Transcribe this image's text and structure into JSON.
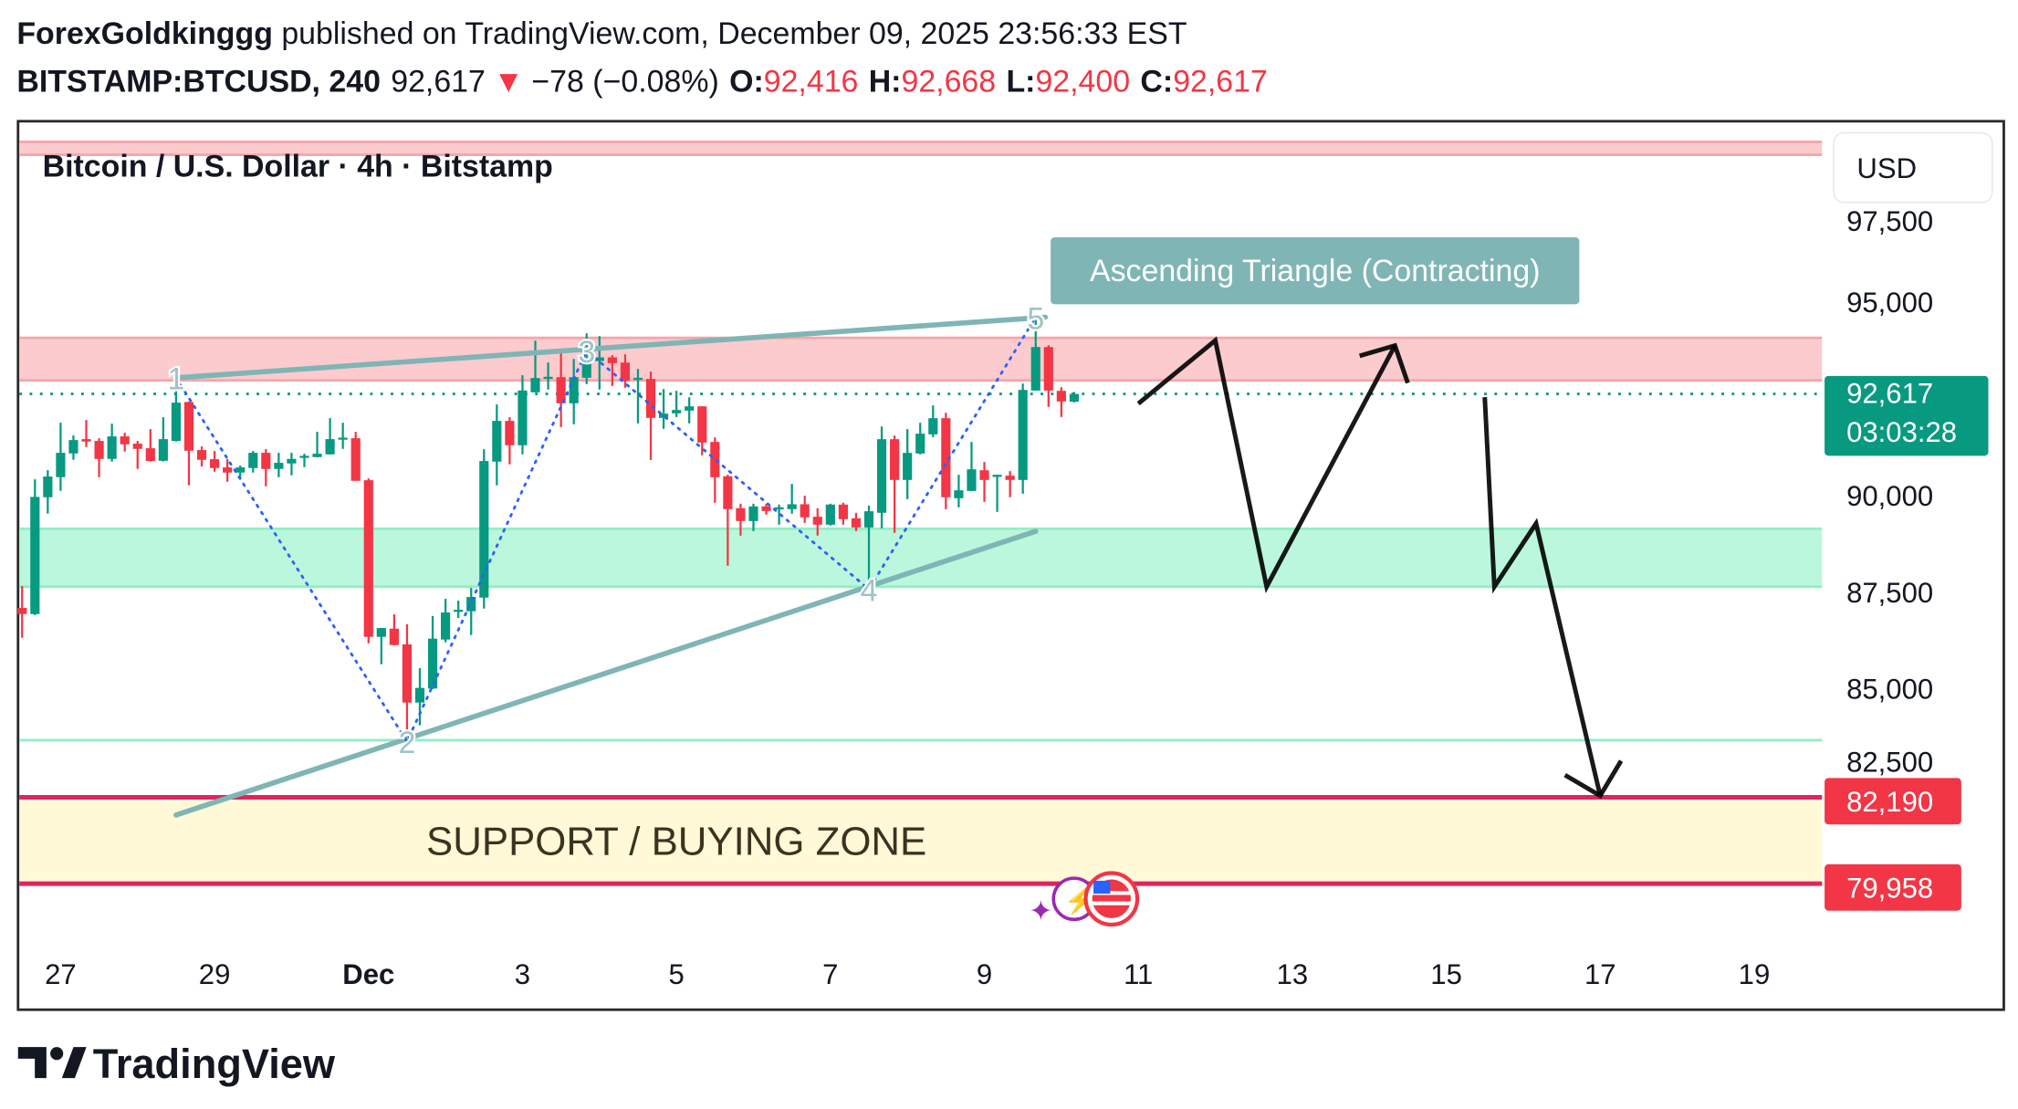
{
  "header": {
    "author": "ForexGoldkinggg",
    "published": " published on TradingView.com, December 09, 2025 23:56:33 EST",
    "symbol": "BITSTAMP:BTCUSD, 240",
    "last": "92,617",
    "change": "−78 (−0.08%)",
    "o_label": "O:",
    "o": "92,416",
    "h_label": "H:",
    "h": "92,668",
    "l_label": "L:",
    "l": "92,400",
    "c_label": "C:",
    "c": "92,617"
  },
  "legend_title": "Bitcoin / U.S. Dollar · 4h · Bitstamp",
  "currency_button": "USD",
  "footer_logo": "TradingView",
  "colors": {
    "up": "#089981",
    "down": "#f23645",
    "triangle": "#7fb5b5",
    "wave": "#2962ff",
    "resistance_fill": "#fccbcd",
    "resistance_edge": "#f7a5a9",
    "demand_fill": "#bbf7dc",
    "demand_edge": "#91efc4",
    "support_fill": "#fff9d8",
    "support_edge": "#e0245e"
  },
  "chart_data": {
    "type": "candlestick",
    "title": "Bitcoin / U.S. Dollar · 4h · Bitstamp",
    "interval_minutes": 240,
    "first_candle": "2025-11-26 12:00",
    "candles_ohlc": [
      [
        87085,
        87651,
        86315,
        86928
      ],
      [
        86928,
        90411,
        86900,
        89955
      ],
      [
        89947,
        90647,
        89523,
        90482
      ],
      [
        90466,
        91873,
        90112,
        91095
      ],
      [
        91079,
        91543,
        90914,
        91425
      ],
      [
        91449,
        91944,
        91244,
        91386
      ],
      [
        91402,
        91472,
        90466,
        90938
      ],
      [
        90938,
        91850,
        90867,
        91520
      ],
      [
        91520,
        91614,
        91126,
        91315
      ],
      [
        91331,
        91402,
        90678,
        91197
      ],
      [
        91213,
        91708,
        90867,
        90883
      ],
      [
        90890,
        92015,
        90870,
        91449
      ],
      [
        91402,
        93100,
        91386,
        92392
      ],
      [
        92408,
        92420,
        90254,
        91150
      ],
      [
        91166,
        91260,
        90741,
        90914
      ],
      [
        90930,
        91142,
        90608,
        90702
      ],
      [
        90718,
        90930,
        90348,
        90584
      ],
      [
        90584,
        90765,
        90411,
        90718
      ],
      [
        90702,
        91142,
        90584,
        91095
      ],
      [
        91095,
        91189,
        90230,
        90678
      ],
      [
        90678,
        91095,
        90466,
        90836
      ],
      [
        90820,
        91095,
        90513,
        90938
      ],
      [
        90970,
        91071,
        90726,
        91017
      ],
      [
        90985,
        91637,
        90980,
        91071
      ],
      [
        91056,
        91991,
        91050,
        91449
      ],
      [
        91441,
        91873,
        91197,
        91488
      ],
      [
        91472,
        91637,
        90372,
        90372
      ],
      [
        90387,
        90435,
        86173,
        86338
      ],
      [
        86338,
        86570,
        85631,
        86566
      ],
      [
        86550,
        86920,
        86120,
        86126
      ],
      [
        86142,
        86661,
        83815,
        84640
      ],
      [
        84640,
        85529,
        84051,
        85018
      ],
      [
        85002,
        86873,
        84990,
        86291
      ],
      [
        86268,
        87321,
        86197,
        86968
      ],
      [
        86991,
        87274,
        86826,
        87038
      ],
      [
        86999,
        87604,
        86385,
        87368
      ],
      [
        87353,
        91189,
        87070,
        90883
      ],
      [
        90867,
        92345,
        90254,
        91920
      ],
      [
        91920,
        92015,
        90796,
        91291
      ],
      [
        91291,
        93100,
        91056,
        92707
      ],
      [
        92660,
        93996,
        92655,
        93029
      ],
      [
        93021,
        93430,
        92730,
        93061
      ],
      [
        93051,
        93711,
        91762,
        92375
      ],
      [
        92375,
        93523,
        91832,
        93051
      ],
      [
        93035,
        94183,
        92870,
        93491
      ],
      [
        93468,
        94112,
        92729,
        93562
      ],
      [
        93562,
        93617,
        92823,
        93413
      ],
      [
        93428,
        93641,
        92776,
        92965
      ],
      [
        93000,
        93263,
        91856,
        93035
      ],
      [
        93004,
        93193,
        90913,
        91998
      ],
      [
        91998,
        92744,
        91714,
        92108
      ],
      [
        92116,
        92697,
        92021,
        92202
      ],
      [
        92186,
        92532,
        91856,
        92296
      ],
      [
        92296,
        92300,
        91030,
        91361
      ],
      [
        91376,
        91494,
        89804,
        90464
      ],
      [
        90488,
        90527,
        88177,
        89639
      ],
      [
        89663,
        89780,
        88955,
        89332
      ],
      [
        89332,
        89780,
        89073,
        89710
      ],
      [
        89710,
        89780,
        89497,
        89592
      ],
      [
        89639,
        89757,
        89238,
        89686
      ],
      [
        89639,
        90292,
        89521,
        89765
      ],
      [
        89765,
        89985,
        89285,
        89427
      ],
      [
        89442,
        89662,
        88955,
        89238
      ],
      [
        89238,
        89780,
        89214,
        89757
      ],
      [
        89757,
        89804,
        89238,
        89380
      ],
      [
        89403,
        89544,
        89073,
        89167
      ],
      [
        89167,
        89733,
        87752,
        89584
      ],
      [
        89545,
        91777,
        89143,
        91447
      ],
      [
        91447,
        91541,
        89026,
        90394
      ],
      [
        90394,
        91707,
        89898,
        91093
      ],
      [
        91078,
        91872,
        91054,
        91589
      ],
      [
        91573,
        92320,
        91502,
        91990
      ],
      [
        91990,
        92131,
        89639,
        89946
      ],
      [
        89922,
        90527,
        89686,
        90126
      ],
      [
        90110,
        91376,
        90100,
        90669
      ],
      [
        90645,
        90858,
        89828,
        90394
      ],
      [
        90480,
        90530,
        89568,
        90527
      ],
      [
        90504,
        90622,
        89946,
        90394
      ],
      [
        90394,
        92886,
        90040,
        92721
      ],
      [
        92705,
        94678,
        92700,
        93829
      ],
      [
        93829,
        93877,
        92281,
        92705
      ],
      [
        92697,
        92791,
        92021,
        92422
      ],
      [
        92416,
        92668,
        92400,
        92617
      ]
    ],
    "x_ticks": [
      {
        "label": "27",
        "date": "2025-11-27 00:00",
        "bold": false
      },
      {
        "label": "29",
        "date": "2025-11-29 00:00",
        "bold": false
      },
      {
        "label": "Dec",
        "date": "2025-12-01 00:00",
        "bold": true
      },
      {
        "label": "3",
        "date": "2025-12-03 00:00",
        "bold": false
      },
      {
        "label": "5",
        "date": "2025-12-05 00:00",
        "bold": false
      },
      {
        "label": "7",
        "date": "2025-12-07 00:00",
        "bold": false
      },
      {
        "label": "9",
        "date": "2025-12-09 00:00",
        "bold": false
      },
      {
        "label": "11",
        "date": "2025-12-11 00:00",
        "bold": false
      },
      {
        "label": "13",
        "date": "2025-12-13 00:00",
        "bold": false
      },
      {
        "label": "15",
        "date": "2025-12-15 00:00",
        "bold": false
      },
      {
        "label": "17",
        "date": "2025-12-17 00:00",
        "bold": false
      },
      {
        "label": "19",
        "date": "2025-12-19 00:00",
        "bold": false
      }
    ],
    "y_ticks": [
      {
        "label": "97,500",
        "value": 97500
      },
      {
        "label": "95,000",
        "value": 95000
      },
      {
        "label": "90,000",
        "value": 90000
      },
      {
        "label": "87,500",
        "value": 87500
      },
      {
        "label": "85,000",
        "value": 85000
      },
      {
        "label": "82,500",
        "value": 82500
      }
    ],
    "y_range": [
      78000,
      101000
    ],
    "zones": [
      {
        "name": "top-resistance-band",
        "from": 98800,
        "to": 99133,
        "kind": "resistance"
      },
      {
        "name": "resistance-zone",
        "from": 92967,
        "to": 94067,
        "kind": "resistance"
      },
      {
        "name": "demand-zone",
        "from": 87633,
        "to": 89133,
        "kind": "demand"
      }
    ],
    "support_line": 83667,
    "support_zone": {
      "label": "SUPPORT / BUYING ZONE",
      "from": 79958,
      "to": 82190,
      "label_date": "2025-12-05 00:00"
    },
    "last_price": {
      "value": 92617,
      "label": "92,617",
      "countdown": "03:03:28"
    },
    "price_tags": [
      {
        "label": "82,190",
        "value": 82190
      },
      {
        "label": "79,958",
        "value": 79958
      }
    ],
    "triangle": {
      "label": "Ascending Triangle (Contracting)",
      "label_anchor": {
        "date": "2025-12-09 20:40",
        "price": 95800
      },
      "upper": [
        [
          "2025-11-28 12:00",
          93033
        ],
        [
          "2025-12-09 19:00",
          94600
        ]
      ],
      "lower": [
        [
          "2025-11-28 12:00",
          81733
        ],
        [
          "2025-12-09 16:00",
          89067
        ]
      ]
    },
    "wave_points": [
      {
        "label": "1",
        "date": "2025-11-28 12:00",
        "price": 93033
      },
      {
        "label": "2",
        "date": "2025-12-01 12:00",
        "price": 83633
      },
      {
        "label": "3",
        "date": "2025-12-03 20:00",
        "price": 93733
      },
      {
        "label": "4",
        "date": "2025-12-07 12:00",
        "price": 87567
      },
      {
        "label": "5",
        "date": "2025-12-09 16:00",
        "price": 94600
      }
    ],
    "projections": [
      {
        "path": [
          [
            "2025-12-11 00:00",
            92367
          ],
          [
            "2025-12-12 00:00",
            94000
          ],
          [
            "2025-12-12 16:00",
            87633
          ],
          [
            "2025-12-14 08:00",
            93867
          ]
        ],
        "head": [
          [
            "2025-12-13 21:00",
            93600
          ],
          [
            "2025-12-14 08:00",
            93867
          ],
          [
            "2025-12-14 12:00",
            92900
          ]
        ]
      },
      {
        "path": [
          [
            "2025-12-15 12:00",
            92533
          ],
          [
            "2025-12-15 15:00",
            87633
          ],
          [
            "2025-12-16 04:00",
            89267
          ],
          [
            "2025-12-17 00:00",
            82233
          ]
        ],
        "head": [
          [
            "2025-12-16 13:00",
            82767
          ],
          [
            "2025-12-17 00:00",
            82233
          ],
          [
            "2025-12-17 06:30",
            83133
          ]
        ]
      }
    ]
  }
}
